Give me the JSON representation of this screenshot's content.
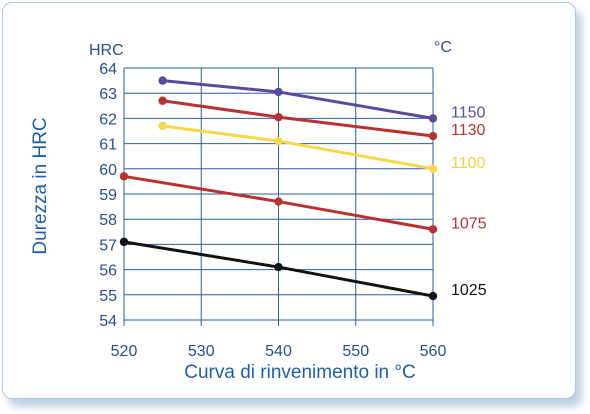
{
  "chart_data": {
    "type": "line",
    "title": "",
    "xlabel": "Curva di rinvenimento in °C",
    "ylabel": "Durezza in HRC",
    "y_unit": "HRC",
    "legend_unit": "°C",
    "xlim": [
      520,
      560
    ],
    "ylim": [
      54,
      64
    ],
    "x_ticks": [
      520,
      530,
      540,
      550,
      560
    ],
    "y_ticks": [
      54,
      55,
      56,
      57,
      58,
      59,
      60,
      61,
      62,
      63,
      64
    ],
    "grid": true,
    "series": [
      {
        "name": "1150",
        "color": "#5a4a9c",
        "x": [
          525,
          540,
          560
        ],
        "y": [
          63.5,
          63.05,
          62.0
        ]
      },
      {
        "name": "1130",
        "color": "#b83232",
        "x": [
          525,
          540,
          560
        ],
        "y": [
          62.7,
          62.05,
          61.3
        ]
      },
      {
        "name": "1100",
        "color": "#f5d94a",
        "x": [
          525,
          540,
          560
        ],
        "y": [
          61.7,
          61.1,
          60.0
        ]
      },
      {
        "name": "1075",
        "color": "#b83232",
        "x": [
          520,
          540,
          560
        ],
        "y": [
          59.7,
          58.7,
          57.6
        ]
      },
      {
        "name": "1025",
        "color": "#111111",
        "x": [
          520,
          540,
          560
        ],
        "y": [
          57.1,
          56.1,
          54.95
        ]
      }
    ]
  }
}
